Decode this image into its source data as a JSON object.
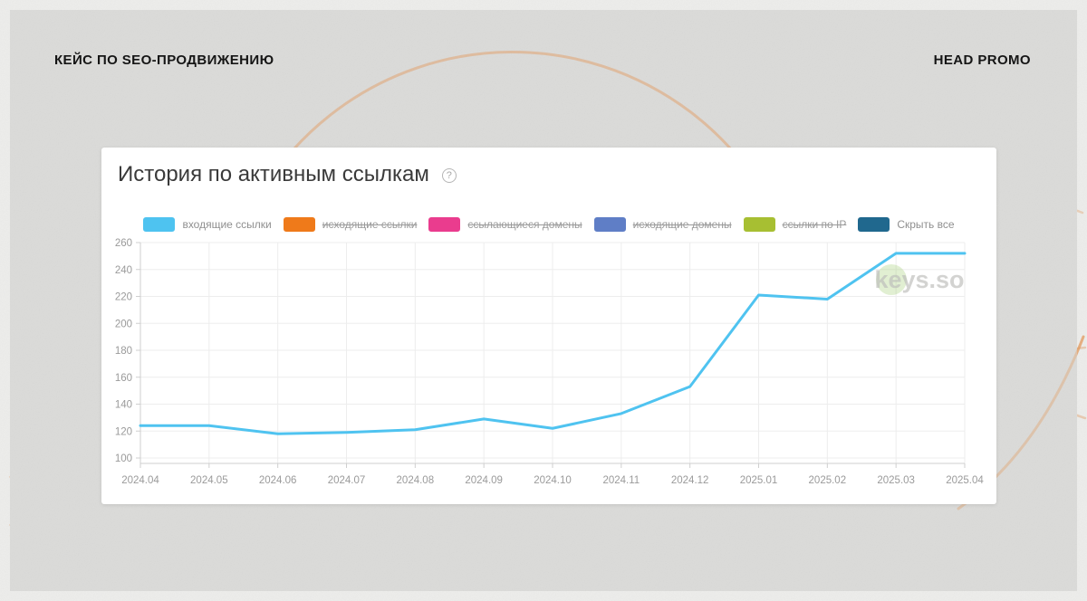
{
  "header": {
    "left_title": "КЕЙС ПО SEO-ПРОДВИЖЕНИЮ",
    "right_brand": "HEAD PROMO"
  },
  "card": {
    "title": "История по активным ссылкам",
    "help_icon": "?",
    "watermark_text": "keys.so"
  },
  "legend": {
    "items": [
      {
        "label": "входящие ссылки",
        "color": "#4EC3F0",
        "hidden": false
      },
      {
        "label": "исходящие ссылки",
        "color": "#EF7A1A",
        "hidden": true
      },
      {
        "label": "ссылающиеся домены",
        "color": "#EA3C8E",
        "hidden": true
      },
      {
        "label": "исходящие домены",
        "color": "#5F7EC6",
        "hidden": true
      },
      {
        "label": "ссылки по IP",
        "color": "#A7BF32",
        "hidden": true
      },
      {
        "label": "Скрыть все",
        "color": "#20688E",
        "hidden": false
      }
    ]
  },
  "chart_data": {
    "type": "line",
    "title": "История по активным ссылкам",
    "x": [
      "2024.04",
      "2024.05",
      "2024.06",
      "2024.07",
      "2024.08",
      "2024.09",
      "2024.10",
      "2024.11",
      "2024.12",
      "2025.01",
      "2025.02",
      "2025.03",
      "2025.04"
    ],
    "series": [
      {
        "name": "входящие ссылки",
        "color": "#4FC3F0",
        "values": [
          124,
          124,
          118,
          119,
          121,
          129,
          122,
          133,
          153,
          221,
          218,
          252,
          252
        ]
      }
    ],
    "xlabel": "",
    "ylabel": "",
    "ylim": [
      100,
      260
    ],
    "y_ticks": [
      100,
      120,
      140,
      160,
      180,
      200,
      220,
      240,
      260
    ],
    "grid": true,
    "legend_position": "top",
    "axis_color": "#cfcfcf",
    "grid_color": "#ededed",
    "tick_label_color": "#9a9a9a"
  },
  "decor": {
    "curve_color": "#E2975A",
    "watermark_circle_color": "#9CCB6A",
    "watermark_text_color": "#bcbcba"
  }
}
